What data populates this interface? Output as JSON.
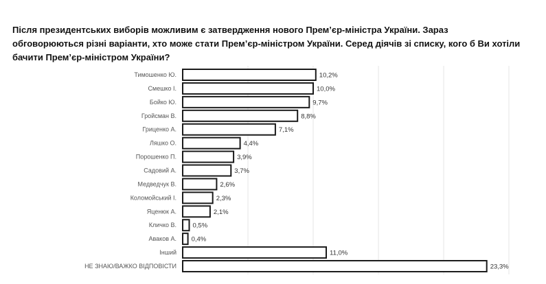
{
  "title": "Після президентських виборів можливим є затвердження нового Прем’єр-міністра України. Зараз обговорюються різні варіанти, хто може стати Прем’єр-міністром України.  Серед діячів зі списку, кого б Ви хотіли бачити Прем’єр-міністром України?",
  "chart_data": {
    "type": "bar",
    "orientation": "horizontal",
    "title": "Після президентських виборів можливим є затвердження нового Прем’єр-міністра України. Зараз обговорюються різні варіанти, хто може стати Прем’єр-міністром України.  Серед діячів зі списку, кого б Ви хотіли бачити Прем’єр-міністром України?",
    "categories": [
      "Тимошенко Ю.",
      "Смешко І.",
      "Бойко Ю.",
      "Гройсман В.",
      "Гриценко А.",
      "Ляшко О.",
      "Порошенко П.",
      "Садовий А.",
      "Медведчук В.",
      "Коломойський І.",
      "Яценюк А.",
      "Кличко В.",
      "Аваков А.",
      "Інший",
      "НЕ ЗНАЮ/ВАЖКО ВІДПОВІСТИ"
    ],
    "values": [
      10.2,
      10.0,
      9.7,
      8.8,
      7.1,
      4.4,
      3.9,
      3.7,
      2.6,
      2.3,
      2.1,
      0.5,
      0.4,
      11.0,
      23.3
    ],
    "labels": [
      "10,2%",
      "10,0%",
      "9,7%",
      "8,8%",
      "7,1%",
      "4,4%",
      "3,9%",
      "3,7%",
      "2,6%",
      "2,3%",
      "2,1%",
      "0,5%",
      "0,4%",
      "11,0%",
      "23,3%"
    ],
    "xlim": [
      0,
      25
    ],
    "grid": true,
    "xlabel": "",
    "ylabel": "",
    "bar_fill": "#ffffff",
    "bar_stroke": "#1a1a1a",
    "grid_color": "#e6e6e6"
  }
}
